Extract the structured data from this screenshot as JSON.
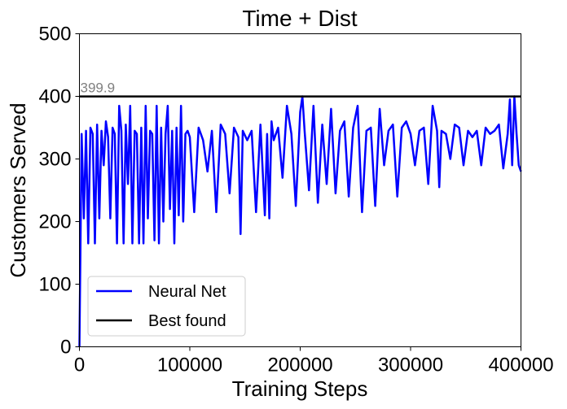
{
  "chart_data": {
    "type": "line",
    "title": "Time + Dist",
    "xlabel": "Training Steps",
    "ylabel": "Customers Served",
    "xlim": [
      0,
      400000
    ],
    "ylim": [
      0,
      500
    ],
    "xticks": [
      0,
      100000,
      200000,
      300000,
      400000
    ],
    "yticks": [
      0,
      100,
      200,
      300,
      400,
      500
    ],
    "xtick_labels": [
      "0",
      "100000",
      "200000",
      "300000",
      "400000"
    ],
    "ytick_labels": [
      "0",
      "100",
      "200",
      "300",
      "400",
      "500"
    ],
    "grid": false,
    "legend_position": "lower-left",
    "annotation": {
      "text": "399.9",
      "x": 0,
      "y": 399.9
    },
    "series": [
      {
        "name": "Neural Net",
        "color": "#0000ff",
        "x": [
          0,
          2000,
          4000,
          6000,
          8000,
          10000,
          12000,
          14000,
          16000,
          18000,
          20000,
          22000,
          24000,
          26000,
          28000,
          30000,
          32000,
          34000,
          36000,
          38000,
          40000,
          42000,
          44000,
          46000,
          48000,
          50000,
          52000,
          54000,
          56000,
          58000,
          60000,
          62000,
          64000,
          66000,
          68000,
          70000,
          72000,
          74000,
          76000,
          78000,
          80000,
          82000,
          84000,
          86000,
          88000,
          90000,
          92000,
          94000,
          96000,
          98000,
          100000,
          104000,
          108000,
          112000,
          116000,
          120000,
          124000,
          128000,
          132000,
          136000,
          140000,
          144000,
          146000,
          148000,
          152000,
          156000,
          160000,
          164000,
          168000,
          170000,
          172000,
          174000,
          176000,
          180000,
          184000,
          188000,
          192000,
          196000,
          200000,
          202000,
          204000,
          208000,
          212000,
          216000,
          220000,
          224000,
          228000,
          232000,
          236000,
          240000,
          244000,
          248000,
          252000,
          256000,
          260000,
          264000,
          268000,
          272000,
          276000,
          280000,
          284000,
          288000,
          292000,
          296000,
          300000,
          304000,
          308000,
          312000,
          316000,
          320000,
          324000,
          326000,
          328000,
          332000,
          336000,
          340000,
          344000,
          348000,
          352000,
          356000,
          360000,
          364000,
          368000,
          372000,
          376000,
          380000,
          384000,
          388000,
          390000,
          392000,
          394000,
          396000,
          398000,
          400000
        ],
        "y": [
          0,
          340,
          205,
          345,
          165,
          350,
          340,
          165,
          355,
          205,
          345,
          290,
          360,
          335,
          205,
          350,
          340,
          165,
          385,
          345,
          165,
          355,
          260,
          385,
          165,
          345,
          340,
          165,
          350,
          165,
          385,
          205,
          345,
          340,
          170,
          385,
          165,
          350,
          200,
          340,
          385,
          220,
          345,
          165,
          350,
          210,
          385,
          200,
          340,
          345,
          335,
          215,
          350,
          330,
          280,
          345,
          215,
          355,
          340,
          245,
          350,
          335,
          180,
          345,
          330,
          345,
          215,
          355,
          210,
          340,
          205,
          360,
          330,
          350,
          270,
          385,
          340,
          225,
          375,
          400,
          345,
          250,
          385,
          230,
          355,
          260,
          380,
          245,
          345,
          360,
          240,
          350,
          385,
          215,
          345,
          350,
          225,
          380,
          290,
          345,
          355,
          240,
          350,
          360,
          340,
          290,
          345,
          350,
          260,
          385,
          345,
          255,
          345,
          340,
          300,
          355,
          350,
          290,
          345,
          335,
          345,
          290,
          350,
          340,
          345,
          355,
          285,
          340,
          395,
          290,
          400,
          340,
          290,
          280
        ]
      },
      {
        "name": "Best found",
        "color": "#000000",
        "x": [
          0,
          400000
        ],
        "y": [
          399.9,
          399.9
        ]
      }
    ]
  }
}
